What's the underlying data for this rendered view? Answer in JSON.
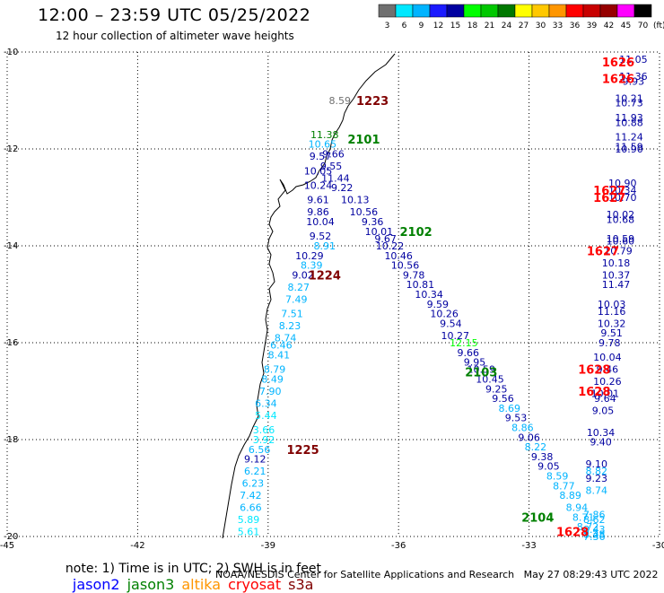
{
  "header": {
    "title": "12:00 – 23:59 UTC 05/25/2022",
    "subtitle": "12 hour collection of altimeter wave heights"
  },
  "colorbar": {
    "unit": "(ft)",
    "labels": [
      "3",
      "6",
      "9",
      "12",
      "15",
      "18",
      "21",
      "24",
      "27",
      "30",
      "33",
      "36",
      "39",
      "42",
      "45",
      "70"
    ],
    "colors": [
      "#707070",
      "#00e8ff",
      "#00b4ff",
      "#1a1aff",
      "#0000a0",
      "#00ff00",
      "#00c800",
      "#007800",
      "#ffff00",
      "#ffc800",
      "#ff9600",
      "#ff0000",
      "#c80000",
      "#960000",
      "#ff00ff",
      "#000000"
    ]
  },
  "axes": {
    "lat_labels": [
      "-10",
      "-12",
      "-14",
      "-16",
      "-18",
      "-20"
    ],
    "lon_labels": [
      "-45",
      "-42",
      "-39",
      "-36",
      "-33",
      "-30"
    ]
  },
  "passes": [
    {
      "id": "1223",
      "color": "#800000",
      "lat": -11.0,
      "lon": -36.6
    },
    {
      "id": "2101",
      "color": "#008000",
      "lat": -11.8,
      "lon": -36.8
    },
    {
      "id": "2102",
      "color": "#008000",
      "lat": -13.7,
      "lon": -35.6
    },
    {
      "id": "1224",
      "color": "#800000",
      "lat": -14.6,
      "lon": -37.7
    },
    {
      "id": "2103",
      "color": "#008000",
      "lat": -16.6,
      "lon": -34.1
    },
    {
      "id": "1225",
      "color": "#800000",
      "lat": -18.2,
      "lon": -38.2
    },
    {
      "id": "2104",
      "color": "#008000",
      "lat": -19.6,
      "lon": -32.8
    },
    {
      "id": "1626",
      "color": "#ff0000",
      "lat": -10.2,
      "lon": -30.95
    },
    {
      "id": "1626",
      "color": "#ff0000",
      "lat": -10.55,
      "lon": -30.95
    },
    {
      "id": "1627",
      "color": "#ff0000",
      "lat": -12.85,
      "lon": -31.15
    },
    {
      "id": "1627",
      "color": "#ff0000",
      "lat": -13.0,
      "lon": -31.15
    },
    {
      "id": "1627",
      "color": "#ff0000",
      "lat": -14.1,
      "lon": -31.3
    },
    {
      "id": "1628",
      "color": "#ff0000",
      "lat": -16.55,
      "lon": -31.5
    },
    {
      "id": "1628",
      "color": "#ff0000",
      "lat": -17.0,
      "lon": -31.5
    },
    {
      "id": "1628",
      "color": "#ff0000",
      "lat": -19.9,
      "lon": -32.0
    }
  ],
  "tracks": [
    {
      "name": "track-1223",
      "points": [
        {
          "v": "8.59",
          "c": "#707070",
          "lat": -11.0,
          "lon": -37.35
        },
        {
          "v": "11.38",
          "c": "#008000",
          "lat": -11.7,
          "lon": -37.7
        },
        {
          "v": "10.65",
          "c": "#00b4ff",
          "lat": -11.9,
          "lon": -37.75
        },
        {
          "v": "9.66",
          "c": "#0000a0",
          "lat": -12.1,
          "lon": -37.5
        },
        {
          "v": "9.57",
          "c": "#0000a0",
          "lat": -12.15,
          "lon": -37.8
        },
        {
          "v": "9.55",
          "c": "#0000a0",
          "lat": -12.35,
          "lon": -37.55
        },
        {
          "v": "10.05",
          "c": "#0000a0",
          "lat": -12.45,
          "lon": -37.85
        },
        {
          "v": "11.44",
          "c": "#0000a0",
          "lat": -12.6,
          "lon": -37.45
        },
        {
          "v": "10.24",
          "c": "#0000a0",
          "lat": -12.75,
          "lon": -37.85
        },
        {
          "v": "9.22",
          "c": "#0000a0",
          "lat": -12.8,
          "lon": -37.3
        },
        {
          "v": "9.61",
          "c": "#0000a0",
          "lat": -13.05,
          "lon": -37.85
        },
        {
          "v": "10.13",
          "c": "#0000a0",
          "lat": -13.05,
          "lon": -37.0
        },
        {
          "v": "9.86",
          "c": "#0000a0",
          "lat": -13.3,
          "lon": -37.85
        },
        {
          "v": "10.56",
          "c": "#0000a0",
          "lat": -13.3,
          "lon": -36.8
        },
        {
          "v": "10.04",
          "c": "#0000a0",
          "lat": -13.5,
          "lon": -37.8
        },
        {
          "v": "9.36",
          "c": "#0000a0",
          "lat": -13.5,
          "lon": -36.6
        },
        {
          "v": "10.01",
          "c": "#0000a0",
          "lat": -13.7,
          "lon": -36.45
        },
        {
          "v": "9.52",
          "c": "#0000a0",
          "lat": -13.8,
          "lon": -37.8
        },
        {
          "v": "9.67",
          "c": "#0000a0",
          "lat": -13.85,
          "lon": -36.3
        },
        {
          "v": "8.91",
          "c": "#00b4ff",
          "lat": -14.0,
          "lon": -37.7
        },
        {
          "v": "10.22",
          "c": "#0000a0",
          "lat": -14.0,
          "lon": -36.2
        },
        {
          "v": "10.29",
          "c": "#0000a0",
          "lat": -14.2,
          "lon": -38.05
        },
        {
          "v": "10.46",
          "c": "#0000a0",
          "lat": -14.2,
          "lon": -36.0
        },
        {
          "v": "8.39",
          "c": "#00b4ff",
          "lat": -14.4,
          "lon": -38.0
        },
        {
          "v": "10.56",
          "c": "#0000a0",
          "lat": -14.4,
          "lon": -35.85
        },
        {
          "v": "9.02",
          "c": "#0000a0",
          "lat": -14.6,
          "lon": -38.2
        },
        {
          "v": "9.78",
          "c": "#0000a0",
          "lat": -14.6,
          "lon": -35.65
        },
        {
          "v": "8.27",
          "c": "#00b4ff",
          "lat": -14.85,
          "lon": -38.3
        },
        {
          "v": "10.81",
          "c": "#0000a0",
          "lat": -14.8,
          "lon": -35.5
        },
        {
          "v": "10.34",
          "c": "#0000a0",
          "lat": -15.0,
          "lon": -35.3
        },
        {
          "v": "7.49",
          "c": "#00b4ff",
          "lat": -15.1,
          "lon": -38.35
        },
        {
          "v": "9.59",
          "c": "#0000a0",
          "lat": -15.2,
          "lon": -35.1
        },
        {
          "v": "7.51",
          "c": "#00b4ff",
          "lat": -15.4,
          "lon": -38.45
        },
        {
          "v": "10.26",
          "c": "#0000a0",
          "lat": -15.4,
          "lon": -34.95
        },
        {
          "v": "9.54",
          "c": "#0000a0",
          "lat": -15.6,
          "lon": -34.8
        },
        {
          "v": "8.23",
          "c": "#00b4ff",
          "lat": -15.65,
          "lon": -38.5
        },
        {
          "v": "10.27",
          "c": "#0000a0",
          "lat": -15.85,
          "lon": -34.7
        },
        {
          "v": "8.74",
          "c": "#00b4ff",
          "lat": -15.9,
          "lon": -38.6
        },
        {
          "v": "12.15",
          "c": "#00ff00",
          "lat": -16.0,
          "lon": -34.5
        },
        {
          "v": "6.46",
          "c": "#00b4ff",
          "lat": -16.05,
          "lon": -38.7
        },
        {
          "v": "9.66",
          "c": "#0000a0",
          "lat": -16.2,
          "lon": -34.4
        },
        {
          "v": "8.41",
          "c": "#00b4ff",
          "lat": -16.25,
          "lon": -38.75
        },
        {
          "v": "9.95",
          "c": "#0000a0",
          "lat": -16.4,
          "lon": -34.25
        },
        {
          "v": "8.79",
          "c": "#00b4ff",
          "lat": -16.55,
          "lon": -38.85
        },
        {
          "v": "10.59",
          "c": "#0000a0",
          "lat": -16.55,
          "lon": -34.1
        },
        {
          "v": "8.49",
          "c": "#00b4ff",
          "lat": -16.75,
          "lon": -38.9
        },
        {
          "v": "10.45",
          "c": "#0000a0",
          "lat": -16.75,
          "lon": -33.9
        },
        {
          "v": "9.25",
          "c": "#0000a0",
          "lat": -16.95,
          "lon": -33.75
        },
        {
          "v": "7.90",
          "c": "#00b4ff",
          "lat": -17.0,
          "lon": -38.95
        },
        {
          "v": "9.56",
          "c": "#0000a0",
          "lat": -17.15,
          "lon": -33.6
        },
        {
          "v": "6.34",
          "c": "#00b4ff",
          "lat": -17.25,
          "lon": -39.05
        },
        {
          "v": "8.69",
          "c": "#00b4ff",
          "lat": -17.35,
          "lon": -33.45
        },
        {
          "v": "5.44",
          "c": "#00e8ff",
          "lat": -17.5,
          "lon": -39.05
        },
        {
          "v": "9.53",
          "c": "#0000a0",
          "lat": -17.55,
          "lon": -33.3
        },
        {
          "v": "3.66",
          "c": "#00e8ff",
          "lat": -17.8,
          "lon": -39.1
        },
        {
          "v": "8.86",
          "c": "#00b4ff",
          "lat": -17.75,
          "lon": -33.15
        },
        {
          "v": "9.06",
          "c": "#0000a0",
          "lat": -17.95,
          "lon": -33.0
        },
        {
          "v": "3.92",
          "c": "#00e8ff",
          "lat": -18.0,
          "lon": -39.1
        },
        {
          "v": "6.56",
          "c": "#00b4ff",
          "lat": -18.2,
          "lon": -39.2
        },
        {
          "v": "8.22",
          "c": "#00b4ff",
          "lat": -18.15,
          "lon": -32.85
        },
        {
          "v": "9.38",
          "c": "#0000a0",
          "lat": -18.35,
          "lon": -32.7
        },
        {
          "v": "9.12",
          "c": "#0000a0",
          "lat": -18.4,
          "lon": -39.3
        },
        {
          "v": "9.05",
          "c": "#0000a0",
          "lat": -18.55,
          "lon": -32.55
        },
        {
          "v": "6.21",
          "c": "#00b4ff",
          "lat": -18.65,
          "lon": -39.3
        },
        {
          "v": "8.59",
          "c": "#00b4ff",
          "lat": -18.75,
          "lon": -32.35
        },
        {
          "v": "6.23",
          "c": "#00b4ff",
          "lat": -18.9,
          "lon": -39.35
        },
        {
          "v": "8.77",
          "c": "#00b4ff",
          "lat": -18.95,
          "lon": -32.2
        },
        {
          "v": "7.42",
          "c": "#00b4ff",
          "lat": -19.15,
          "lon": -39.4
        },
        {
          "v": "8.89",
          "c": "#00b4ff",
          "lat": -19.15,
          "lon": -32.05
        },
        {
          "v": "6.66",
          "c": "#00b4ff",
          "lat": -19.4,
          "lon": -39.4
        },
        {
          "v": "8.94",
          "c": "#00b4ff",
          "lat": -19.4,
          "lon": -31.9
        },
        {
          "v": "5.89",
          "c": "#00e8ff",
          "lat": -19.65,
          "lon": -39.45
        },
        {
          "v": "8.71",
          "c": "#00b4ff",
          "lat": -19.6,
          "lon": -31.75
        },
        {
          "v": "8.72",
          "c": "#00b4ff",
          "lat": -19.8,
          "lon": -31.65
        },
        {
          "v": "5.61",
          "c": "#00e8ff",
          "lat": -19.9,
          "lon": -39.45
        },
        {
          "v": "8.45",
          "c": "#00b4ff",
          "lat": -19.95,
          "lon": -31.5
        }
      ]
    },
    {
      "name": "track-east",
      "points": [
        {
          "v": "11.05",
          "c": "#0000a0",
          "lat": -10.15,
          "lon": -30.6
        },
        {
          "v": "11.36",
          "c": "#0000a0",
          "lat": -10.5,
          "lon": -30.6
        },
        {
          "v": "9.93",
          "c": "#0000a0",
          "lat": -10.6,
          "lon": -30.6
        },
        {
          "v": "10.21",
          "c": "#0000a0",
          "lat": -10.95,
          "lon": -30.7
        },
        {
          "v": "10.73",
          "c": "#0000a0",
          "lat": -11.05,
          "lon": -30.7
        },
        {
          "v": "11.93",
          "c": "#0000a0",
          "lat": -11.35,
          "lon": -30.7
        },
        {
          "v": "10.88",
          "c": "#0000a0",
          "lat": -11.45,
          "lon": -30.7
        },
        {
          "v": "11.24",
          "c": "#0000a0",
          "lat": -11.75,
          "lon": -30.7
        },
        {
          "v": "11.59",
          "c": "#0000a0",
          "lat": -11.95,
          "lon": -30.7
        },
        {
          "v": "10.90",
          "c": "#0000a0",
          "lat": -12.0,
          "lon": -30.7
        },
        {
          "v": "10.90",
          "c": "#0000a0",
          "lat": -12.7,
          "lon": -30.85
        },
        {
          "v": "10.34",
          "c": "#0000a0",
          "lat": -12.85,
          "lon": -30.85
        },
        {
          "v": "10.70",
          "c": "#0000a0",
          "lat": -13.0,
          "lon": -30.85
        },
        {
          "v": "10.02",
          "c": "#0000a0",
          "lat": -13.35,
          "lon": -30.9
        },
        {
          "v": "10.68",
          "c": "#0000a0",
          "lat": -13.45,
          "lon": -30.9
        },
        {
          "v": "10.59",
          "c": "#0000a0",
          "lat": -13.85,
          "lon": -30.9
        },
        {
          "v": "10.60",
          "c": "#0000a0",
          "lat": -13.9,
          "lon": -30.9
        },
        {
          "v": "10.79",
          "c": "#0000a0",
          "lat": -14.1,
          "lon": -30.95
        },
        {
          "v": "10.18",
          "c": "#0000a0",
          "lat": -14.35,
          "lon": -31.0
        },
        {
          "v": "10.37",
          "c": "#0000a0",
          "lat": -14.6,
          "lon": -31.0
        },
        {
          "v": "11.47",
          "c": "#0000a0",
          "lat": -14.8,
          "lon": -31.0
        },
        {
          "v": "10.03",
          "c": "#0000a0",
          "lat": -15.2,
          "lon": -31.1
        },
        {
          "v": "11.16",
          "c": "#0000a0",
          "lat": -15.35,
          "lon": -31.1
        },
        {
          "v": "10.32",
          "c": "#0000a0",
          "lat": -15.6,
          "lon": -31.1
        },
        {
          "v": "9.51",
          "c": "#0000a0",
          "lat": -15.8,
          "lon": -31.1
        },
        {
          "v": "9.78",
          "c": "#0000a0",
          "lat": -16.0,
          "lon": -31.15
        },
        {
          "v": "10.04",
          "c": "#0000a0",
          "lat": -16.3,
          "lon": -31.2
        },
        {
          "v": "9.46",
          "c": "#0000a0",
          "lat": -16.55,
          "lon": -31.2
        },
        {
          "v": "10.26",
          "c": "#0000a0",
          "lat": -16.8,
          "lon": -31.2
        },
        {
          "v": "10.01",
          "c": "#0000a0",
          "lat": -17.05,
          "lon": -31.25
        },
        {
          "v": "9.64",
          "c": "#0000a0",
          "lat": -17.15,
          "lon": -31.25
        },
        {
          "v": "9.05",
          "c": "#0000a0",
          "lat": -17.4,
          "lon": -31.3
        },
        {
          "v": "10.34",
          "c": "#0000a0",
          "lat": -17.85,
          "lon": -31.35
        },
        {
          "v": "9.40",
          "c": "#0000a0",
          "lat": -18.05,
          "lon": -31.35
        },
        {
          "v": "9.10",
          "c": "#0000a0",
          "lat": -18.5,
          "lon": -31.45
        },
        {
          "v": "8.82",
          "c": "#00b4ff",
          "lat": -18.65,
          "lon": -31.45
        },
        {
          "v": "9.23",
          "c": "#0000a0",
          "lat": -18.8,
          "lon": -31.45
        },
        {
          "v": "8.74",
          "c": "#00b4ff",
          "lat": -19.05,
          "lon": -31.45
        },
        {
          "v": "7.86",
          "c": "#00b4ff",
          "lat": -19.55,
          "lon": -31.5
        },
        {
          "v": "8.62",
          "c": "#00b4ff",
          "lat": -19.65,
          "lon": -31.5
        },
        {
          "v": "8.43",
          "c": "#00b4ff",
          "lat": -19.85,
          "lon": -31.5
        },
        {
          "v": "8.28",
          "c": "#00b4ff",
          "lat": -19.95,
          "lon": -31.5
        },
        {
          "v": "7.36",
          "c": "#00b4ff",
          "lat": -20.0,
          "lon": -31.5
        }
      ]
    }
  ],
  "note": {
    "text": "note: 1) Time is in UTC; 2) SWH is in feet",
    "satellites": [
      {
        "name": "jason2",
        "color": "#0000ff"
      },
      {
        "name": "jason3",
        "color": "#008000"
      },
      {
        "name": "altika",
        "color": "#ff9600"
      },
      {
        "name": "cryosat",
        "color": "#ff0000"
      },
      {
        "name": "s3a",
        "color": "#800000"
      }
    ]
  },
  "credit": "NOAA/NESDIS Center for Satellite Applications and Research   May 27 08:29:43 UTC 2022"
}
